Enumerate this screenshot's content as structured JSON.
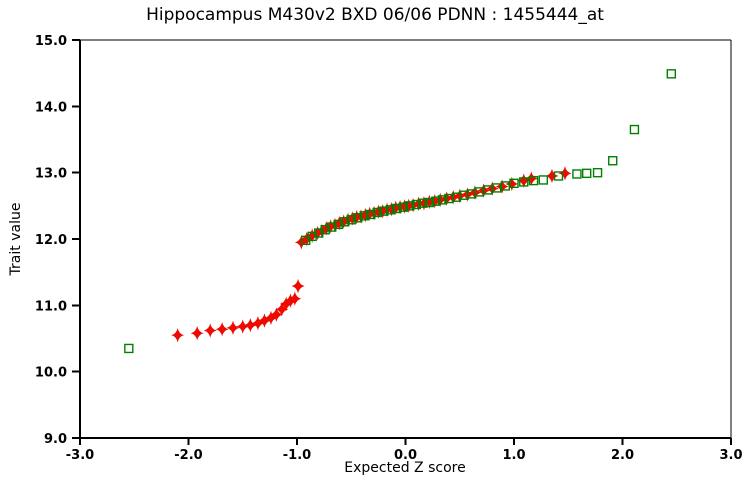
{
  "chart_data": {
    "type": "scatter",
    "title": "Hippocampus M430v2 BXD 06/06 PDNN : 1455444_at",
    "xlabel": "Expected Z score",
    "ylabel": "Trait value",
    "xlim": [
      -3.0,
      3.0
    ],
    "ylim": [
      9.0,
      15.0
    ],
    "grid": false,
    "legend_position": "none",
    "x_ticks": [
      -3.0,
      -2.0,
      -1.0,
      0.0,
      1.0,
      2.0,
      3.0
    ],
    "x_tick_labels": [
      "-3.0",
      "-2.0",
      "-1.0",
      "0.0",
      "1.0",
      "2.0",
      "3.0"
    ],
    "y_ticks": [
      9.0,
      10.0,
      11.0,
      12.0,
      13.0,
      14.0,
      15.0
    ],
    "y_tick_labels": [
      "9.0",
      "10.0",
      "11.0",
      "12.0",
      "13.0",
      "14.0",
      "15.0"
    ],
    "axis_color": "#000000",
    "background_color": "#ffffff",
    "series": [
      {
        "name": "trait-values-red-diamonds",
        "marker": "diamond4",
        "color": "#ee0a00",
        "points": [
          [
            -2.1,
            10.55
          ],
          [
            -1.92,
            10.58
          ],
          [
            -1.8,
            10.62
          ],
          [
            -1.69,
            10.64
          ],
          [
            -1.59,
            10.66
          ],
          [
            -1.5,
            10.68
          ],
          [
            -1.43,
            10.7
          ],
          [
            -1.36,
            10.73
          ],
          [
            -1.3,
            10.77
          ],
          [
            -1.24,
            10.81
          ],
          [
            -1.19,
            10.86
          ],
          [
            -1.14,
            10.94
          ],
          [
            -1.1,
            11.02
          ],
          [
            -1.06,
            11.07
          ],
          [
            -1.02,
            11.1
          ],
          [
            -0.99,
            11.29
          ],
          [
            -0.96,
            11.95
          ],
          [
            -0.91,
            12.0
          ],
          [
            -0.86,
            12.05
          ],
          [
            -0.81,
            12.09
          ],
          [
            -0.77,
            12.12
          ],
          [
            -0.73,
            12.16
          ],
          [
            -0.69,
            12.19
          ],
          [
            -0.65,
            12.21
          ],
          [
            -0.61,
            12.24
          ],
          [
            -0.57,
            12.26
          ],
          [
            -0.53,
            12.29
          ],
          [
            -0.49,
            12.31
          ],
          [
            -0.45,
            12.33
          ],
          [
            -0.41,
            12.34
          ],
          [
            -0.37,
            12.36
          ],
          [
            -0.33,
            12.38
          ],
          [
            -0.29,
            12.39
          ],
          [
            -0.25,
            12.41
          ],
          [
            -0.21,
            12.42
          ],
          [
            -0.17,
            12.44
          ],
          [
            -0.13,
            12.45
          ],
          [
            -0.09,
            12.47
          ],
          [
            -0.05,
            12.48
          ],
          [
            -0.01,
            12.49
          ],
          [
            0.03,
            12.5
          ],
          [
            0.07,
            12.51
          ],
          [
            0.12,
            12.53
          ],
          [
            0.17,
            12.54
          ],
          [
            0.22,
            12.56
          ],
          [
            0.27,
            12.57
          ],
          [
            0.32,
            12.59
          ],
          [
            0.38,
            12.61
          ],
          [
            0.44,
            12.63
          ],
          [
            0.5,
            12.65
          ],
          [
            0.57,
            12.67
          ],
          [
            0.64,
            12.7
          ],
          [
            0.72,
            12.73
          ],
          [
            0.8,
            12.76
          ],
          [
            0.89,
            12.79
          ],
          [
            0.98,
            12.83
          ],
          [
            1.09,
            12.88
          ],
          [
            1.16,
            12.91
          ],
          [
            1.35,
            12.95
          ],
          [
            1.47,
            12.99
          ]
        ]
      },
      {
        "name": "trait-values-green-squares",
        "marker": "square-open",
        "color": "#008000",
        "points": [
          [
            -2.55,
            10.35
          ],
          [
            -0.92,
            11.98
          ],
          [
            -0.86,
            12.04
          ],
          [
            -0.8,
            12.09
          ],
          [
            -0.74,
            12.14
          ],
          [
            -0.68,
            12.18
          ],
          [
            -0.62,
            12.22
          ],
          [
            -0.56,
            12.26
          ],
          [
            -0.5,
            12.29
          ],
          [
            -0.44,
            12.32
          ],
          [
            -0.38,
            12.35
          ],
          [
            -0.32,
            12.37
          ],
          [
            -0.26,
            12.4
          ],
          [
            -0.2,
            12.42
          ],
          [
            -0.14,
            12.44
          ],
          [
            -0.08,
            12.46
          ],
          [
            -0.02,
            12.48
          ],
          [
            0.04,
            12.5
          ],
          [
            0.1,
            12.52
          ],
          [
            0.16,
            12.54
          ],
          [
            0.22,
            12.55
          ],
          [
            0.28,
            12.57
          ],
          [
            0.34,
            12.59
          ],
          [
            0.4,
            12.61
          ],
          [
            0.47,
            12.63
          ],
          [
            0.54,
            12.66
          ],
          [
            0.61,
            12.68
          ],
          [
            0.68,
            12.71
          ],
          [
            0.76,
            12.74
          ],
          [
            0.84,
            12.77
          ],
          [
            0.92,
            12.8
          ],
          [
            1.0,
            12.84
          ],
          [
            1.09,
            12.86
          ],
          [
            1.18,
            12.88
          ],
          [
            1.27,
            12.89
          ],
          [
            1.41,
            12.95
          ],
          [
            1.58,
            12.98
          ],
          [
            1.67,
            12.99
          ],
          [
            1.77,
            13.0
          ],
          [
            1.91,
            13.18
          ],
          [
            2.11,
            13.65
          ],
          [
            2.45,
            14.49
          ]
        ]
      }
    ]
  }
}
